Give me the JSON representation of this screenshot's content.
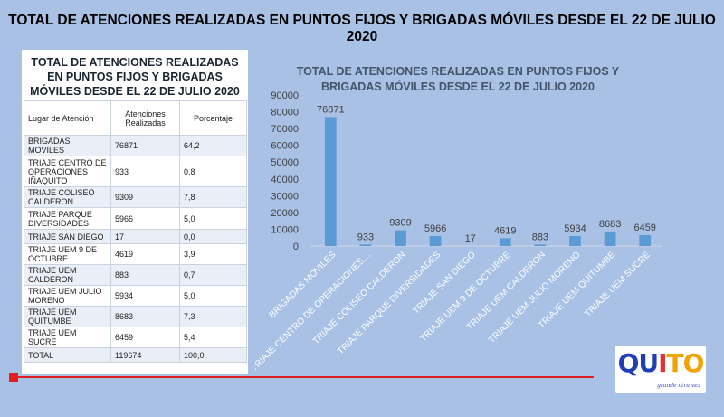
{
  "slide_title": "TOTAL DE ATENCIONES REALIZADAS EN PUNTOS FIJOS Y BRIGADAS MÓVILES DESDE EL 22 DE JULIO 2020",
  "table": {
    "title": "TOTAL DE ATENCIONES REALIZADAS EN PUNTOS FIJOS Y BRIGADAS MÓVILES DESDE EL 22 DE JULIO 2020",
    "headers": [
      "Lugar de Atención",
      "Atenciones Realizadas",
      "Porcentaje"
    ],
    "rows": [
      [
        "BRIGADAS MOVILES",
        "76871",
        "64,2"
      ],
      [
        "TRIAJE CENTRO DE OPERACIONES IÑAQUITO",
        "933",
        "0,8"
      ],
      [
        "TRIAJE COLISEO CALDERON",
        "9309",
        "7,8"
      ],
      [
        "TRIAJE PARQUE DIVERSIDADES",
        "5966",
        "5,0"
      ],
      [
        "TRIAJE SAN DIEGO",
        "17",
        "0,0"
      ],
      [
        "TRIAJE UEM 9 DE OCTUBRE",
        "4619",
        "3,9"
      ],
      [
        "TRIAJE UEM CALDERON",
        "883",
        "0,7"
      ],
      [
        "TRIAJE UEM JULIO MORENO",
        "5934",
        "5,0"
      ],
      [
        "TRIAJE UEM QUITUMBE",
        "8683",
        "7,3"
      ],
      [
        "TRIAJE UEM SUCRE",
        "6459",
        "5,4"
      ],
      [
        "TOTAL",
        "119674",
        "100,0"
      ]
    ]
  },
  "chart_data": {
    "type": "bar",
    "title_lines": [
      "TOTAL DE ATENCIONES REALIZADAS EN PUNTOS FIJOS Y",
      "BRIGADAS MÓVILES DESDE EL 22 DE JULIO 2020"
    ],
    "categories": [
      "BRIGADAS MOVILES",
      "TRIAJE CENTRO DE OPERACIONES…",
      "TRIAJE COLISEO CALDERON",
      "TRIAJE PARQUE DIVERSIDADES",
      "TRIAJE SAN DIEGO",
      "TRIAJE UEM 9 DE OCTUBRE",
      "TRIAJE UEM CALDERON",
      "TRIAJE UEM JULIO MORENO",
      "TRIAJE UEM QUITUMBE",
      "TRIAJE UEM SUCRE"
    ],
    "values": [
      76871,
      933,
      9309,
      5966,
      17,
      4619,
      883,
      5934,
      8683,
      6459
    ],
    "ylim": [
      0,
      90000
    ],
    "yticks": [
      0,
      10000,
      20000,
      30000,
      40000,
      50000,
      60000,
      70000,
      80000,
      90000
    ],
    "bar_color": "#5b9bd5",
    "grid": false,
    "legend": "none"
  },
  "logo": {
    "letters": [
      "QU",
      "I",
      "TO"
    ],
    "tagline": "grande otra vez"
  },
  "colors": {
    "background": "#a8c1e5",
    "accent_line": "#e02020"
  }
}
